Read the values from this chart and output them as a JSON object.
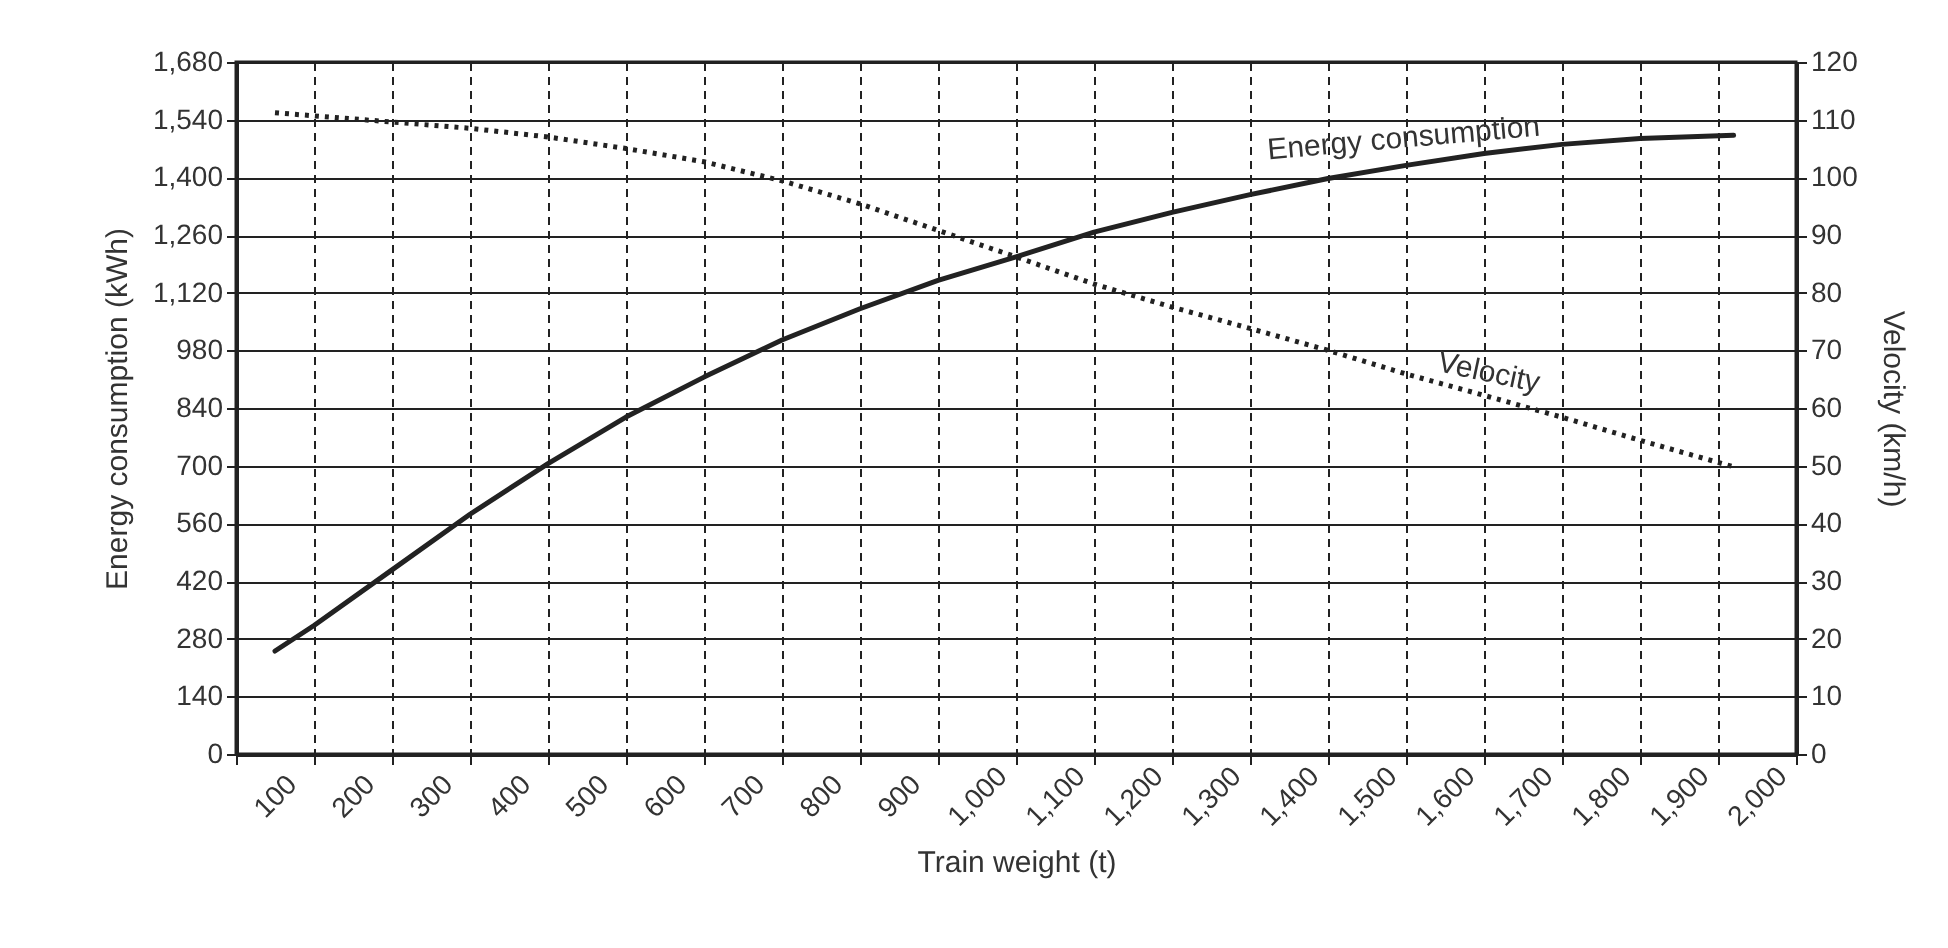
{
  "chart_data": {
    "type": "line",
    "xlabel": "Train weight (t)",
    "ylabel": "Energy consumption (kWh)",
    "y2label": "Velocity (km/h)",
    "xlim": [
      50,
      2050
    ],
    "xticks": [
      {
        "value": 50,
        "label": null
      },
      100,
      {
        "value": 150,
        "label": null
      },
      200,
      {
        "value": 250,
        "label": null
      },
      300,
      {
        "value": 350,
        "label": null
      },
      400,
      {
        "value": 450,
        "label": null
      },
      500,
      {
        "value": 550,
        "label": null
      },
      600,
      {
        "value": 650,
        "label": null
      },
      700,
      {
        "value": 750,
        "label": null
      },
      800,
      {
        "value": 850,
        "label": null
      },
      900,
      {
        "value": 950,
        "label": null
      },
      {
        "value": 1000,
        "label": "1,000"
      },
      {
        "value": 1050,
        "label": null
      },
      {
        "value": 1100,
        "label": "1,100"
      },
      {
        "value": 1150,
        "label": null
      },
      {
        "value": 1200,
        "label": "1,200"
      },
      {
        "value": 1250,
        "label": null
      },
      {
        "value": 1300,
        "label": "1,300"
      },
      {
        "value": 1350,
        "label": null
      },
      {
        "value": 1400,
        "label": "1,400"
      },
      {
        "value": 1450,
        "label": null
      },
      {
        "value": 1500,
        "label": "1,500"
      },
      {
        "value": 1550,
        "label": null
      },
      {
        "value": 1600,
        "label": "1,600"
      },
      {
        "value": 1650,
        "label": null
      },
      {
        "value": 1700,
        "label": "1,700"
      },
      {
        "value": 1750,
        "label": null
      },
      {
        "value": 1800,
        "label": "1,800"
      },
      {
        "value": 1850,
        "label": null
      },
      {
        "value": 1900,
        "label": "1,900"
      },
      {
        "value": 1950,
        "label": null
      },
      {
        "value": 2000,
        "label": "2,000"
      },
      {
        "value": 2050,
        "label": null
      }
    ],
    "ylim": [
      0,
      1680
    ],
    "yticks": [
      0,
      140,
      280,
      420,
      560,
      700,
      840,
      980,
      {
        "value": 1120,
        "label": "1,120"
      },
      {
        "value": 1260,
        "label": "1,260"
      },
      {
        "value": 1400,
        "label": "1,400"
      },
      {
        "value": 1540,
        "label": "1,540"
      },
      {
        "value": 1680,
        "label": "1,680"
      }
    ],
    "y2lim": [
      0,
      120
    ],
    "y2ticks": [
      0,
      10,
      20,
      30,
      40,
      50,
      60,
      70,
      80,
      90,
      100,
      110,
      120
    ],
    "grid": true,
    "marker": "none",
    "series": [
      {
        "name": "Energy consumption",
        "color": "#222222",
        "line_style": "solid",
        "x": [
          100,
          150,
          250,
          350,
          450,
          550,
          650,
          750,
          850,
          950,
          1050,
          1150,
          1250,
          1350,
          1450,
          1550,
          1650,
          1750,
          1850,
          1970
        ],
        "values": [
          250,
          312,
          447,
          582,
          705,
          818,
          915,
          1005,
          1081,
          1150,
          1207,
          1267,
          1315,
          1358,
          1397,
          1429,
          1458,
          1480,
          1494,
          1502
        ]
      },
      {
        "name": "Velocity",
        "color": "#222222",
        "line_style": "dotted",
        "axis": "y2",
        "x": [
          100,
          250,
          350,
          450,
          550,
          650,
          750,
          850,
          950,
          1050,
          1150,
          1250,
          1350,
          1450,
          1550,
          1650,
          1750,
          1850,
          1970
        ],
        "values": [
          111.2,
          109.6,
          108.5,
          107,
          105,
          102.7,
          99.4,
          95.4,
          90.8,
          86.2,
          81.5,
          77.5,
          73.8,
          70,
          65.9,
          62.2,
          58.4,
          54.4,
          49.8
        ]
      }
    ]
  }
}
